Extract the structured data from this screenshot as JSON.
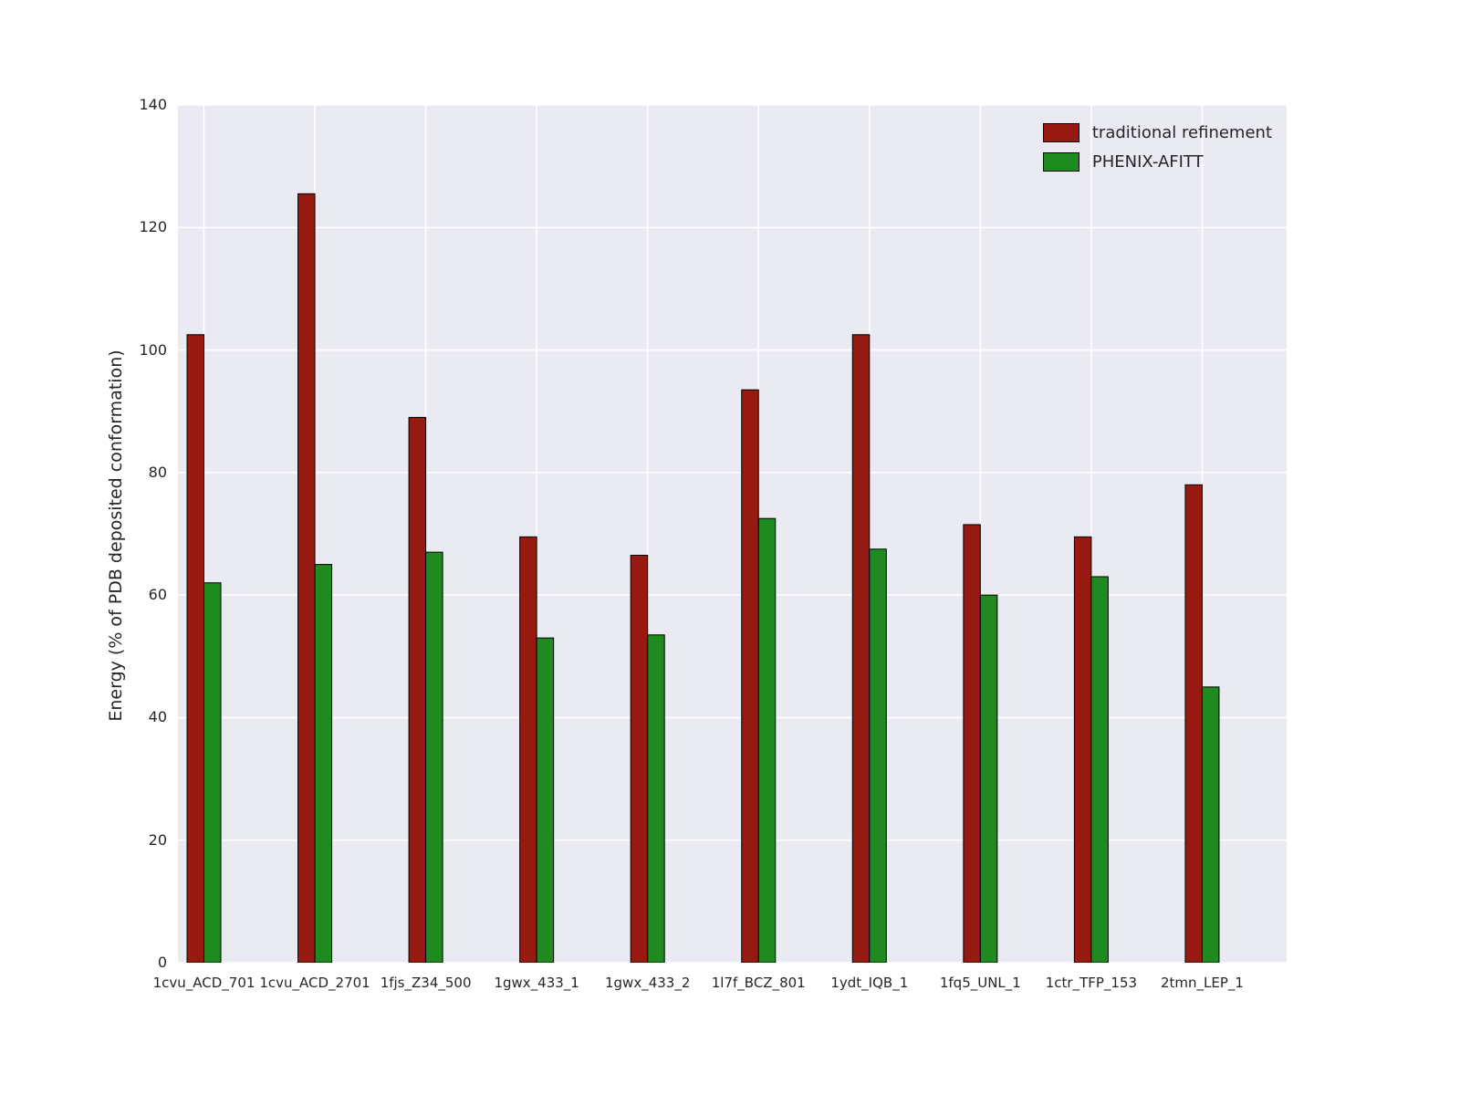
{
  "figure": {
    "background": "#ffffff",
    "plot_background": "#eaeaf2",
    "grid_color": "#ffffff",
    "tick_color": "#262626"
  },
  "chart_data": {
    "type": "bar",
    "title": "",
    "xlabel": "",
    "ylabel": "Energy (% of PDB deposited conformation)",
    "ylim": [
      0,
      140
    ],
    "yticks": [
      0,
      20,
      40,
      60,
      80,
      100,
      120,
      140
    ],
    "grid": true,
    "legend_position": "upper right",
    "categories": [
      "1cvu_ACD_701",
      "1cvu_ACD_2701",
      "1fjs_Z34_500",
      "1gwx_433_1",
      "1gwx_433_2",
      "1l7f_BCZ_801",
      "1ydt_IQB_1",
      "1fq5_UNL_1",
      "1ctr_TFP_153",
      "2tmn_LEP_1"
    ],
    "series": [
      {
        "name": "traditional refinement",
        "color": "#961a10",
        "values": [
          102.5,
          125.5,
          89,
          69.5,
          66.5,
          93.5,
          102.5,
          71.5,
          69.5,
          78
        ]
      },
      {
        "name": "PHENIX-AFITT",
        "color": "#1f8a1f",
        "values": [
          62,
          65,
          67,
          53,
          53.5,
          72.5,
          67.5,
          60,
          63,
          45
        ]
      }
    ]
  }
}
